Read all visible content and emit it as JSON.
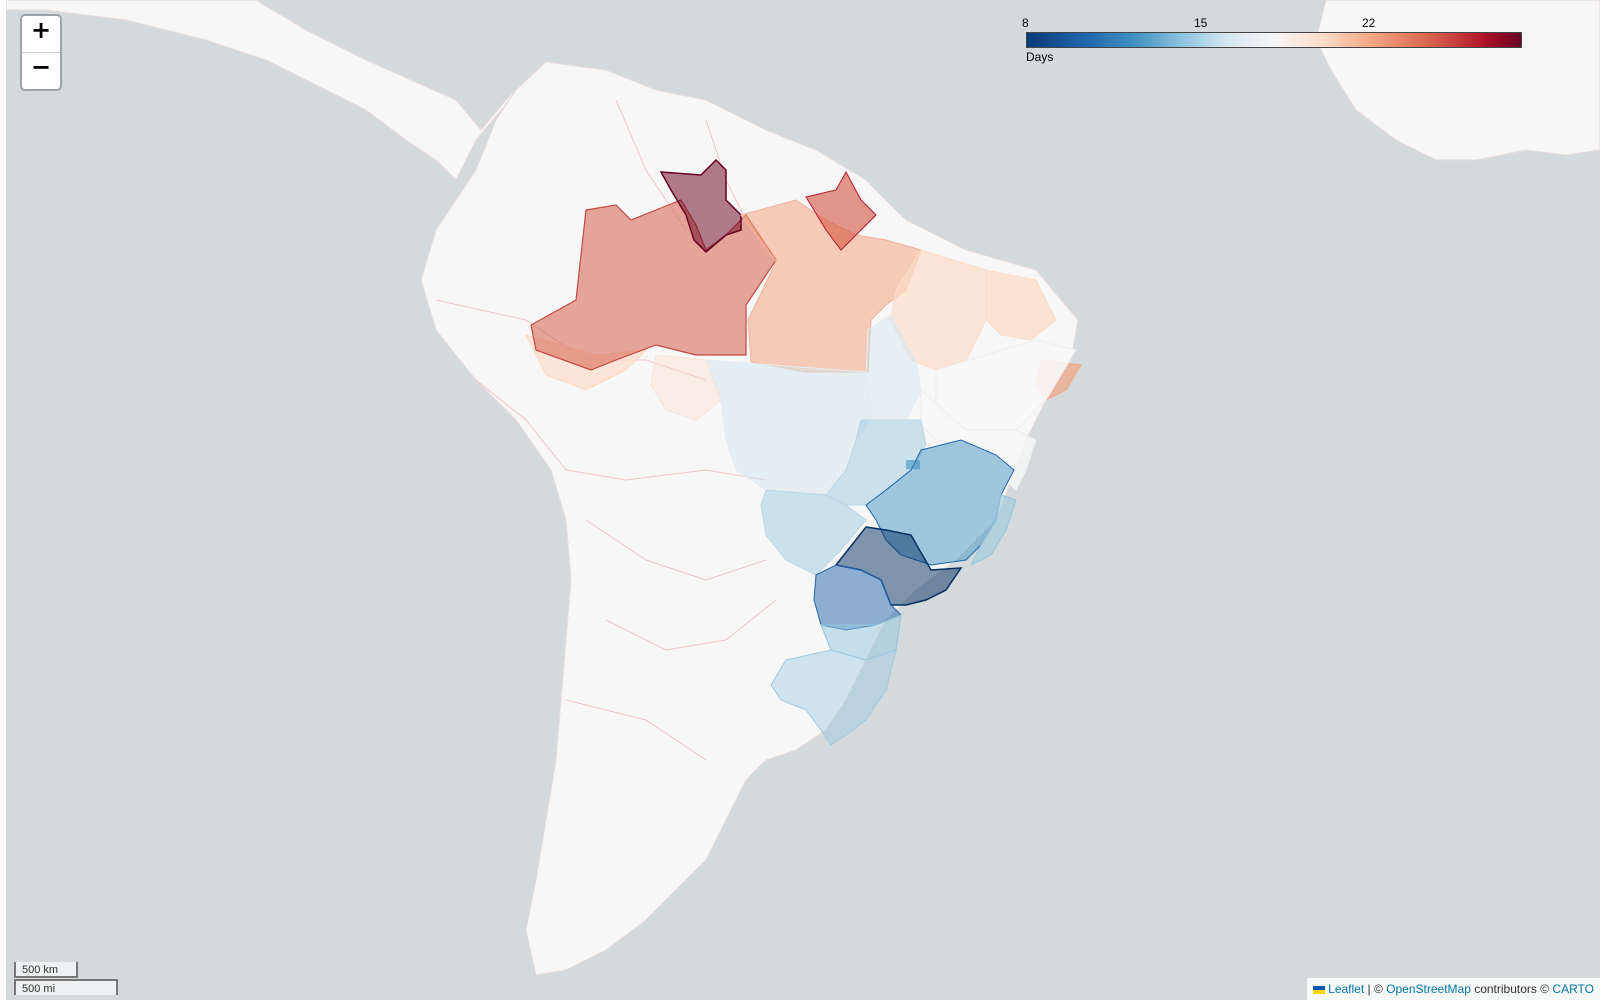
{
  "map": {
    "zoom_in_label": "+",
    "zoom_out_label": "−",
    "colors": {
      "water": "#d4dadc",
      "land": "#f7f7f7",
      "boundaries": "#f1c7c7"
    }
  },
  "legend": {
    "ticks": [
      "8",
      "15",
      "22"
    ],
    "title": "Days",
    "colormap": [
      "#67001f",
      "#b2182b",
      "#d6604d",
      "#f4a582",
      "#fddbc7",
      "#f7f7f7",
      "#d1e5f0",
      "#92c5de",
      "#4393c3",
      "#2166ac",
      "#053061"
    ]
  },
  "scale": {
    "km_label": "500 km",
    "mi_label": "500 mi"
  },
  "attribution": {
    "leaflet": "Leaflet",
    "separator": " | © ",
    "osm": "OpenStreetMap",
    "contributors": " contributors © ",
    "carto": "CARTO"
  }
}
